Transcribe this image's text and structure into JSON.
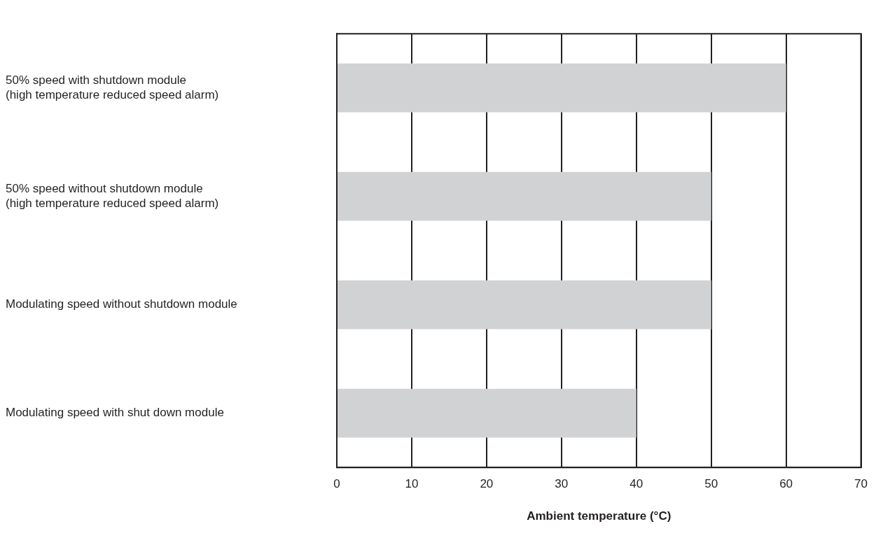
{
  "chart_data": {
    "type": "bar",
    "orientation": "horizontal",
    "xlabel": "Ambient temperature (°C)",
    "categories": [
      "50% speed with shutdown module\n(high temperature reduced speed alarm)",
      "50% speed without shutdown module\n(high temperature reduced speed alarm)",
      "Modulating speed without shutdown module",
      "Modulating speed with shut down module"
    ],
    "values": [
      60,
      50,
      50,
      40
    ],
    "color": "#d1d2d4",
    "xlim": [
      0,
      70
    ],
    "xticks": [
      0,
      10,
      20,
      30,
      40,
      50,
      60,
      70
    ],
    "grid": "x",
    "legend": false
  }
}
